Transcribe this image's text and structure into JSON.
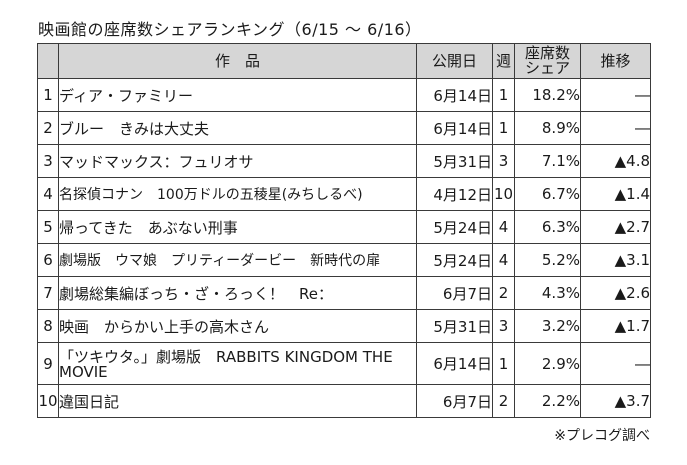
{
  "title": "映画館の座席数シェアランキング（6/15 ～ 6/16）",
  "headers": {
    "title": "作　品",
    "release": "公開日",
    "weeks": "週",
    "share": "座席数\nシェア",
    "trend": "推移"
  },
  "rows": [
    {
      "rank": "1",
      "title": "ディア・ファミリー",
      "release": "6月14日",
      "weeks": "1",
      "share": "18.2%",
      "trend": "―"
    },
    {
      "rank": "2",
      "title": "ブルー　きみは大丈夫",
      "release": "6月14日",
      "weeks": "1",
      "share": "8.9%",
      "trend": "―"
    },
    {
      "rank": "3",
      "title": "マッドマックス：フュリオサ",
      "release": "5月31日",
      "weeks": "3",
      "share": "7.1%",
      "trend": "▲4.8"
    },
    {
      "rank": "4",
      "title": "名探偵コナン　100万ドルの五稜星(みちしるべ)",
      "release": "4月12日",
      "weeks": "10",
      "share": "6.7%",
      "trend": "▲1.4"
    },
    {
      "rank": "5",
      "title": "帰ってきた　あぶない刑事",
      "release": "5月24日",
      "weeks": "4",
      "share": "6.3%",
      "trend": "▲2.7"
    },
    {
      "rank": "6",
      "title": "劇場版　ウマ娘　プリティーダービー　新時代の扉",
      "release": "5月24日",
      "weeks": "4",
      "share": "5.2%",
      "trend": "▲3.1"
    },
    {
      "rank": "7",
      "title": "劇場総集編ぼっち・ざ・ろっく！　Re：",
      "release": "6月7日",
      "weeks": "2",
      "share": "4.3%",
      "trend": "▲2.6"
    },
    {
      "rank": "8",
      "title": "映画　からかい上手の高木さん",
      "release": "5月31日",
      "weeks": "3",
      "share": "3.2%",
      "trend": "▲1.7"
    },
    {
      "rank": "9",
      "title": "「ツキウタ。」劇場版　RABBITS KINGDOM THE MOVIE",
      "release": "6月14日",
      "weeks": "1",
      "share": "2.9%",
      "trend": "―"
    },
    {
      "rank": "10",
      "title": "違国日記",
      "release": "6月7日",
      "weeks": "2",
      "share": "2.2%",
      "trend": "▲3.7"
    }
  ],
  "source": "※プレコグ調べ"
}
